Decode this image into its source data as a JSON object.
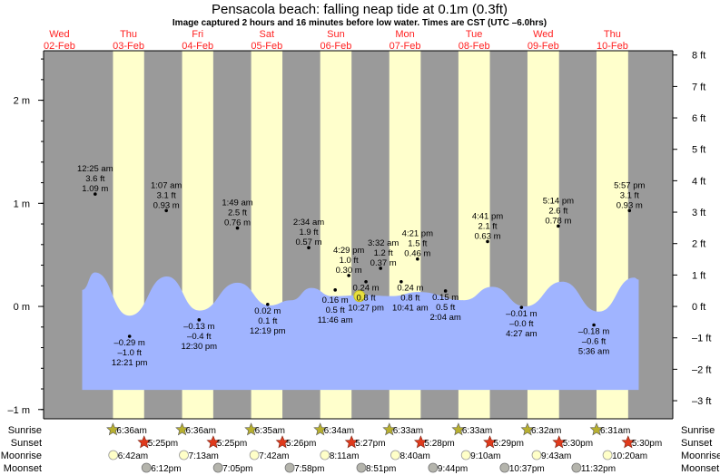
{
  "chart_data": {
    "type": "area",
    "title": "Pensacola beach: falling  neap tide at 0.1m (0.3ft)",
    "subtitle": "Image captured 2 hours and 16 minutes before low water. Times are CST (UTC –6.0hrs)",
    "days": [
      {
        "dow": "Wed",
        "date": "02-Feb"
      },
      {
        "dow": "Thu",
        "date": "03-Feb"
      },
      {
        "dow": "Fri",
        "date": "04-Feb"
      },
      {
        "dow": "Sat",
        "date": "05-Feb"
      },
      {
        "dow": "Sun",
        "date": "06-Feb"
      },
      {
        "dow": "Mon",
        "date": "07-Feb"
      },
      {
        "dow": "Tue",
        "date": "08-Feb"
      },
      {
        "dow": "Wed",
        "date": "09-Feb"
      },
      {
        "dow": "Thu",
        "date": "10-Feb"
      }
    ],
    "xlim": [
      "02-Feb 06:30",
      "11-Feb 09:00"
    ],
    "ylim_m": [
      -1.09,
      2.48
    ],
    "y_left_ticks": [
      {
        "value": 2,
        "label": "2 m"
      },
      {
        "value": 1,
        "label": "1 m"
      },
      {
        "value": 0,
        "label": "0 m"
      },
      {
        "value": -1,
        "label": "–1 m"
      }
    ],
    "y_right_ticks": [
      {
        "value": 8,
        "label": "8 ft"
      },
      {
        "value": 7,
        "label": "7 ft"
      },
      {
        "value": 6,
        "label": "6 ft"
      },
      {
        "value": 5,
        "label": "5 ft"
      },
      {
        "value": 4,
        "label": "4 ft"
      },
      {
        "value": 3,
        "label": "3 ft"
      },
      {
        "value": 2,
        "label": "2 ft"
      },
      {
        "value": 1,
        "label": "1 ft"
      },
      {
        "value": 0,
        "label": "0 ft"
      },
      {
        "value": -1,
        "label": "–1 ft"
      },
      {
        "value": -2,
        "label": "–2 ft"
      },
      {
        "value": -3,
        "label": "–3 ft"
      }
    ],
    "fill_floor_m": -0.81,
    "curve": [
      {
        "t": "02-Feb 19:54",
        "m": 0.16
      },
      {
        "t": "03-Feb 00:20",
        "m": 0.33
      },
      {
        "t": "03-Feb 12:18",
        "m": -0.09
      },
      {
        "t": "04-Feb 01:16",
        "m": 0.29
      },
      {
        "t": "04-Feb 12:38",
        "m": -0.04
      },
      {
        "t": "05-Feb 01:54",
        "m": 0.23
      },
      {
        "t": "05-Feb 12:57",
        "m": 0.01
      },
      {
        "t": "05-Feb 20:31",
        "m": 0.06
      },
      {
        "t": "06-Feb 03:28",
        "m": 0.18
      },
      {
        "t": "06-Feb 10:44",
        "m": 0.1
      },
      {
        "t": "06-Feb 21:47",
        "m": 0.11
      },
      {
        "t": "07-Feb 07:16",
        "m": 0.1
      },
      {
        "t": "07-Feb 16:44",
        "m": 0.14
      },
      {
        "t": "08-Feb 08:31",
        "m": 0.06
      },
      {
        "t": "08-Feb 18:19",
        "m": 0.19
      },
      {
        "t": "09-Feb 05:41",
        "m": 0.0
      },
      {
        "t": "09-Feb 18:38",
        "m": 0.24
      },
      {
        "t": "10-Feb 07:16",
        "m": -0.05
      },
      {
        "t": "10-Feb 19:34",
        "m": 0.28
      },
      {
        "t": "10-Feb 21:10",
        "m": 0.26
      }
    ],
    "extremes": [
      {
        "kind": "high",
        "t": "03-Feb 00:25",
        "time": "12:25 am",
        "ft": "3.6 ft",
        "m_label": "1.09 m",
        "m": 1.09
      },
      {
        "kind": "low",
        "t": "03-Feb 12:21",
        "time": "12:21 pm",
        "ft": "–1.0 ft",
        "m_label": "–0.29 m",
        "m": -0.29
      },
      {
        "kind": "high",
        "t": "04-Feb 01:07",
        "time": "1:07 am",
        "ft": "3.1 ft",
        "m_label": "0.93 m",
        "m": 0.93
      },
      {
        "kind": "low",
        "t": "04-Feb 12:30",
        "time": "12:30 pm",
        "ft": "–0.4 ft",
        "m_label": "–0.13 m",
        "m": -0.13
      },
      {
        "kind": "high",
        "t": "05-Feb 01:49",
        "time": "1:49 am",
        "ft": "2.5 ft",
        "m_label": "0.76 m",
        "m": 0.76
      },
      {
        "kind": "low",
        "t": "05-Feb 12:19",
        "time": "12:19 pm",
        "ft": "0.1 ft",
        "m_label": "0.02 m",
        "m": 0.02
      },
      {
        "kind": "high",
        "t": "06-Feb 02:34",
        "time": "2:34 am",
        "ft": "1.9 ft",
        "m_label": "0.57 m",
        "m": 0.57
      },
      {
        "kind": "low",
        "t": "06-Feb 11:46",
        "time": "11:46 am",
        "ft": "0.5 ft",
        "m_label": "0.16 m",
        "m": 0.16
      },
      {
        "kind": "high",
        "t": "06-Feb 16:29",
        "time": "4:29 pm",
        "ft": "1.0 ft",
        "m_label": "0.30 m",
        "m": 0.3
      },
      {
        "kind": "low",
        "t": "06-Feb 22:27",
        "time": "10:27 pm",
        "ft": "0.8 ft",
        "m_label": "0.24 m",
        "m": 0.24
      },
      {
        "kind": "high",
        "t": "07-Feb 03:32",
        "time": "3:32 am",
        "ft": "1.2 ft",
        "m_label": "0.37 m",
        "m": 0.37
      },
      {
        "kind": "low",
        "t": "07-Feb 10:41",
        "time": "10:41 am",
        "ft": "0.8 ft",
        "m_label": "0.24 m",
        "m": 0.24
      },
      {
        "kind": "high",
        "t": "07-Feb 16:21",
        "time": "4:21 pm",
        "ft": "1.5 ft",
        "m_label": "0.46 m",
        "m": 0.46
      },
      {
        "kind": "low",
        "t": "08-Feb 02:04",
        "time": "2:04 am",
        "ft": "0.5 ft",
        "m_label": "0.15 m",
        "m": 0.15
      },
      {
        "kind": "high",
        "t": "08-Feb 16:41",
        "time": "4:41 pm",
        "ft": "2.1 ft",
        "m_label": "0.63 m",
        "m": 0.63
      },
      {
        "kind": "low",
        "t": "09-Feb 04:27",
        "time": "4:27 am",
        "ft": "–0.0 ft",
        "m_label": "–0.01 m",
        "m": -0.01
      },
      {
        "kind": "high",
        "t": "09-Feb 17:14",
        "time": "5:14 pm",
        "ft": "2.6 ft",
        "m_label": "0.78 m",
        "m": 0.78
      },
      {
        "kind": "low",
        "t": "10-Feb 05:36",
        "time": "5:36 am",
        "ft": "–0.6 ft",
        "m_label": "–0.18 m",
        "m": -0.18
      },
      {
        "kind": "high",
        "t": "10-Feb 17:57",
        "time": "5:57 pm",
        "ft": "3.1 ft",
        "m_label": "0.93 m",
        "m": 0.93
      }
    ],
    "now": {
      "t": "06-Feb 20:11",
      "m": 0.1
    },
    "row_labels": {
      "sunrise": "Sunrise",
      "sunset": "Sunset",
      "moonrise": "Moonrise",
      "moonset": "Moonset"
    },
    "sun": [
      {
        "day": "03-Feb",
        "sunrise": "6:36am",
        "sunset": "5:25pm"
      },
      {
        "day": "04-Feb",
        "sunrise": "6:36am",
        "sunset": "5:25pm"
      },
      {
        "day": "05-Feb",
        "sunrise": "6:35am",
        "sunset": "5:26pm"
      },
      {
        "day": "06-Feb",
        "sunrise": "6:34am",
        "sunset": "5:27pm"
      },
      {
        "day": "07-Feb",
        "sunrise": "6:33am",
        "sunset": "5:28pm"
      },
      {
        "day": "08-Feb",
        "sunrise": "6:33am",
        "sunset": "5:29pm"
      },
      {
        "day": "09-Feb",
        "sunrise": "6:32am",
        "sunset": "5:30pm"
      },
      {
        "day": "10-Feb",
        "sunrise": "6:31am",
        "sunset": "5:30pm"
      }
    ],
    "moonrise": [
      {
        "day": "03-Feb",
        "time": "6:42am"
      },
      {
        "day": "04-Feb",
        "time": "7:13am"
      },
      {
        "day": "05-Feb",
        "time": "7:42am"
      },
      {
        "day": "06-Feb",
        "time": "8:11am"
      },
      {
        "day": "07-Feb",
        "time": "8:40am"
      },
      {
        "day": "08-Feb",
        "time": "9:10am"
      },
      {
        "day": "09-Feb",
        "time": "9:43am"
      },
      {
        "day": "10-Feb",
        "time": "10:20am"
      }
    ],
    "moonset": [
      {
        "day": "03-Feb",
        "time": "6:12pm"
      },
      {
        "day": "04-Feb",
        "time": "7:05pm"
      },
      {
        "day": "05-Feb",
        "time": "7:58pm"
      },
      {
        "day": "06-Feb",
        "time": "8:51pm"
      },
      {
        "day": "07-Feb",
        "time": "9:44pm"
      },
      {
        "day": "08-Feb",
        "time": "10:37pm"
      },
      {
        "day": "09-Feb",
        "time": "11:32pm"
      }
    ]
  },
  "colors": {
    "night": "#9a9a9a",
    "day": "#ffffcc",
    "water": "#a0b4ff",
    "day_label": "#ff2020",
    "sunrise_icon": "#b8b030",
    "sunset_icon": "#e03a1c",
    "moonrise_icon": "#ffffc8",
    "moonset_icon": "#b4b4ac",
    "now_marker": "#e8e040"
  }
}
